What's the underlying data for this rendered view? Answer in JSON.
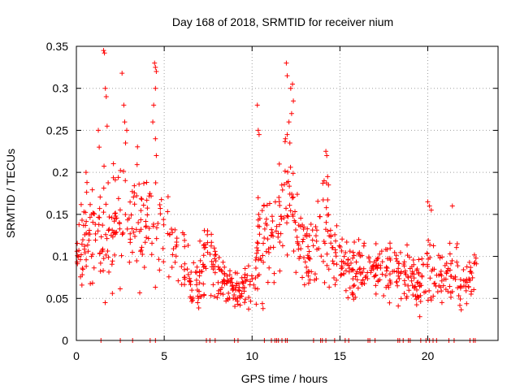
{
  "chart_data": {
    "type": "scatter",
    "title": "Day 168 of 2018, SRMTID for receiver nium",
    "xlabel": "GPS time / hours",
    "ylabel": "SRMTID / TECUs",
    "xlim": [
      0,
      24
    ],
    "ylim": [
      0,
      0.35
    ],
    "grid": true,
    "marker": "+",
    "color": "#ff0000",
    "x_ticks": [
      {
        "value": 0,
        "label": "0"
      },
      {
        "value": 5,
        "label": "5"
      },
      {
        "value": 10,
        "label": "10"
      },
      {
        "value": 15,
        "label": "15"
      },
      {
        "value": 20,
        "label": "20"
      }
    ],
    "y_ticks": [
      {
        "value": 0,
        "label": "0"
      },
      {
        "value": 0.05,
        "label": "0.05"
      },
      {
        "value": 0.1,
        "label": "0.1"
      },
      {
        "value": 0.15,
        "label": "0.15"
      },
      {
        "value": 0.2,
        "label": "0.2"
      },
      {
        "value": 0.25,
        "label": "0.25"
      },
      {
        "value": 0.3,
        "label": "0.3"
      },
      {
        "value": 0.35,
        "label": "0.35"
      }
    ],
    "trend": [
      [
        0.0,
        0.1,
        0.04
      ],
      [
        0.5,
        0.12,
        0.05
      ],
      [
        1.0,
        0.13,
        0.06
      ],
      [
        1.5,
        0.14,
        0.07
      ],
      [
        2.0,
        0.13,
        0.06
      ],
      [
        2.5,
        0.15,
        0.07
      ],
      [
        3.0,
        0.15,
        0.06
      ],
      [
        3.5,
        0.15,
        0.06
      ],
      [
        4.0,
        0.15,
        0.06
      ],
      [
        4.5,
        0.15,
        0.07
      ],
      [
        5.0,
        0.12,
        0.05
      ],
      [
        5.5,
        0.11,
        0.04
      ],
      [
        6.0,
        0.09,
        0.04
      ],
      [
        6.5,
        0.07,
        0.03
      ],
      [
        7.0,
        0.07,
        0.03
      ],
      [
        7.5,
        0.1,
        0.04
      ],
      [
        8.0,
        0.08,
        0.03
      ],
      [
        8.5,
        0.07,
        0.02
      ],
      [
        9.0,
        0.06,
        0.02
      ],
      [
        9.5,
        0.06,
        0.02
      ],
      [
        10.0,
        0.07,
        0.03
      ],
      [
        10.5,
        0.11,
        0.06
      ],
      [
        11.0,
        0.11,
        0.05
      ],
      [
        11.5,
        0.13,
        0.06
      ],
      [
        12.0,
        0.16,
        0.07
      ],
      [
        12.5,
        0.13,
        0.05
      ],
      [
        13.0,
        0.1,
        0.04
      ],
      [
        13.5,
        0.11,
        0.04
      ],
      [
        14.0,
        0.13,
        0.05
      ],
      [
        14.5,
        0.12,
        0.05
      ],
      [
        15.0,
        0.1,
        0.04
      ],
      [
        15.5,
        0.08,
        0.03
      ],
      [
        16.0,
        0.08,
        0.03
      ],
      [
        16.5,
        0.09,
        0.03
      ],
      [
        17.0,
        0.09,
        0.03
      ],
      [
        17.5,
        0.08,
        0.03
      ],
      [
        18.0,
        0.09,
        0.03
      ],
      [
        18.5,
        0.08,
        0.03
      ],
      [
        19.0,
        0.08,
        0.03
      ],
      [
        19.5,
        0.07,
        0.03
      ],
      [
        20.0,
        0.09,
        0.04
      ],
      [
        20.5,
        0.08,
        0.03
      ],
      [
        21.0,
        0.08,
        0.03
      ],
      [
        21.5,
        0.08,
        0.03
      ],
      [
        22.0,
        0.07,
        0.03
      ],
      [
        22.5,
        0.08,
        0.03
      ],
      [
        22.8,
        0.09,
        0.03
      ]
    ],
    "outliers": [
      [
        1.55,
        0.345
      ],
      [
        1.6,
        0.342
      ],
      [
        1.65,
        0.3
      ],
      [
        1.7,
        0.29
      ],
      [
        1.75,
        0.255
      ],
      [
        2.6,
        0.318
      ],
      [
        2.7,
        0.28
      ],
      [
        2.75,
        0.26
      ],
      [
        2.8,
        0.235
      ],
      [
        4.45,
        0.33
      ],
      [
        4.5,
        0.325
      ],
      [
        4.55,
        0.32
      ],
      [
        4.5,
        0.3
      ],
      [
        4.4,
        0.28
      ],
      [
        4.35,
        0.26
      ],
      [
        4.5,
        0.24
      ],
      [
        4.55,
        0.22
      ],
      [
        1.25,
        0.25
      ],
      [
        1.3,
        0.23
      ],
      [
        0.55,
        0.2
      ],
      [
        10.3,
        0.28
      ],
      [
        10.35,
        0.25
      ],
      [
        10.4,
        0.245
      ],
      [
        11.95,
        0.33
      ],
      [
        12.0,
        0.315
      ],
      [
        12.2,
        0.3
      ],
      [
        12.3,
        0.305
      ],
      [
        12.35,
        0.285
      ],
      [
        12.25,
        0.27
      ],
      [
        12.1,
        0.26
      ],
      [
        12.0,
        0.245
      ],
      [
        11.9,
        0.24
      ],
      [
        12.15,
        0.235
      ],
      [
        14.2,
        0.225
      ],
      [
        14.25,
        0.22
      ],
      [
        14.3,
        0.195
      ],
      [
        14.35,
        0.185
      ],
      [
        14.1,
        0.19
      ],
      [
        20.0,
        0.165
      ],
      [
        20.1,
        0.16
      ],
      [
        21.4,
        0.16
      ],
      [
        20.2,
        0.155
      ]
    ],
    "zero_markers": [
      1.4,
      2.5,
      3.2,
      4.2,
      4.5,
      7.4,
      7.6,
      7.9,
      9.0,
      9.2,
      10.7,
      11.1,
      11.3,
      11.4,
      11.5,
      11.7,
      11.9,
      12.0,
      13.5,
      13.9,
      14.0,
      14.2,
      14.7,
      15.3,
      15.5,
      16.6,
      16.7,
      17.0,
      18.3,
      18.4,
      18.6,
      18.9,
      19.0,
      19.6,
      19.9,
      20.1,
      20.3,
      20.5,
      21.2,
      21.5,
      22.4,
      22.6,
      22.7
    ],
    "zero_marker_value": 0,
    "seed": 168,
    "samples_per_hour": 40
  }
}
